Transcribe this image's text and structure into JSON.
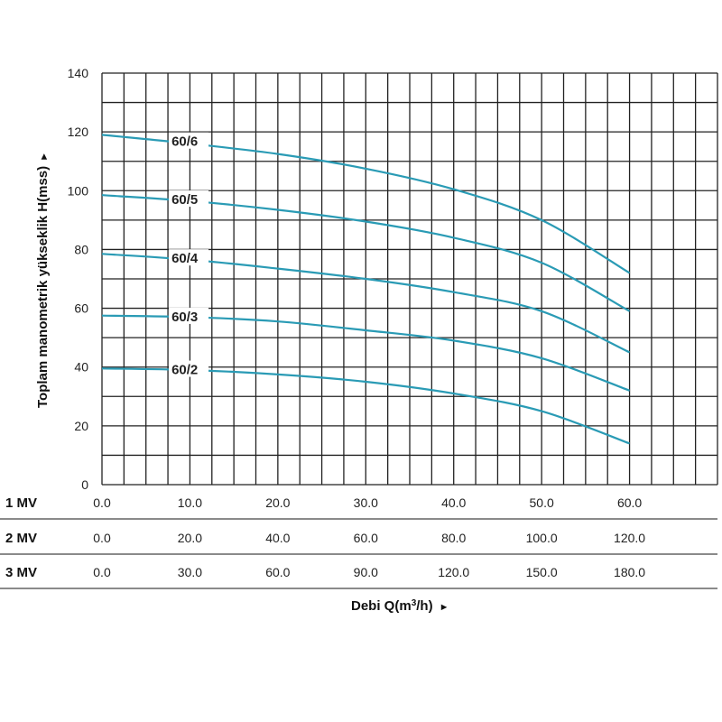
{
  "chart_data": {
    "type": "line",
    "ylabel": "Toplam manometrik yükseklik H(mss)",
    "xlabel_prefix": "Debi Q(m",
    "xlabel_sup": "3",
    "xlabel_suffix": "/h)",
    "xlabel_arrow": "►",
    "ylabel_arrow": "►",
    "ylim": [
      0,
      140
    ],
    "yticks": [
      "0",
      "20",
      "40",
      "60",
      "80",
      "100",
      "120",
      "140"
    ],
    "xlim": [
      0,
      70
    ],
    "grid": true,
    "scales": [
      {
        "name": "1 MV",
        "ticks": [
          "0.0",
          "10.0",
          "20.0",
          "30.0",
          "40.0",
          "50.0",
          "60.0"
        ]
      },
      {
        "name": "2 MV",
        "ticks": [
          "0.0",
          "20.0",
          "40.0",
          "60.0",
          "80.0",
          "100.0",
          "120.0"
        ]
      },
      {
        "name": "3 MV",
        "ticks": [
          "0.0",
          "30.0",
          "60.0",
          "90.0",
          "120.0",
          "150.0",
          "180.0"
        ]
      }
    ],
    "series": [
      {
        "name": "60/6",
        "x": [
          0,
          10,
          20,
          30,
          40,
          50,
          60
        ],
        "values": [
          119,
          116,
          112.5,
          107.5,
          100.5,
          90,
          72
        ]
      },
      {
        "name": "60/5",
        "x": [
          0,
          10,
          20,
          30,
          40,
          50,
          60
        ],
        "values": [
          98.5,
          96.5,
          93.5,
          89.5,
          84,
          75.5,
          59
        ]
      },
      {
        "name": "60/4",
        "x": [
          0,
          10,
          20,
          30,
          40,
          50,
          60
        ],
        "values": [
          78.5,
          76.5,
          73.5,
          70,
          65.5,
          59,
          45
        ]
      },
      {
        "name": "60/3",
        "x": [
          0,
          10,
          20,
          30,
          40,
          50,
          60
        ],
        "values": [
          57.5,
          57,
          55.5,
          52.5,
          49,
          43,
          32
        ]
      },
      {
        "name": "60/2",
        "x": [
          0,
          10,
          20,
          30,
          40,
          50,
          60
        ],
        "values": [
          39.5,
          39,
          37.5,
          35,
          31,
          25,
          14
        ]
      }
    ],
    "line_color": "#2a9bb5"
  }
}
